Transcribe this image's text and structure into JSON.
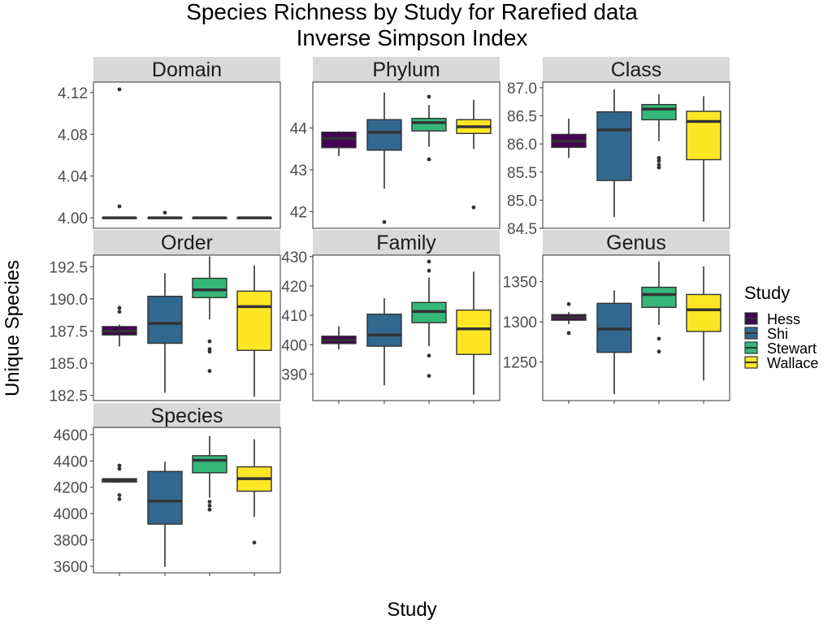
{
  "chart_data": {
    "type": "boxplot",
    "title_line1": "Species Richness by Study for Rarefied data",
    "title_line2": "Inverse Simpson Index",
    "xlabel": "Study",
    "ylabel": "Unique Species",
    "legend": {
      "title": "Study",
      "position": "right",
      "items": [
        {
          "name": "Hess",
          "color": "#440154"
        },
        {
          "name": "Shi",
          "color": "#31688E"
        },
        {
          "name": "Stewart",
          "color": "#35B779"
        },
        {
          "name": "Wallace",
          "color": "#FDE725"
        }
      ]
    },
    "panels": [
      {
        "name": "Domain",
        "ylim": [
          3.99,
          4.13
        ],
        "ticks": [
          4.0,
          4.04,
          4.08,
          4.12
        ],
        "tick_labels": [
          "4.00",
          "4.04",
          "4.08",
          "4.12"
        ],
        "boxes": [
          {
            "study": "Hess",
            "q1": 4.0,
            "median": 4.0,
            "q3": 4.0,
            "lower": 4.0,
            "upper": 4.0,
            "outliers": [
              4.011,
              4.123
            ]
          },
          {
            "study": "Shi",
            "q1": 4.0,
            "median": 4.0,
            "q3": 4.0,
            "lower": 4.0,
            "upper": 4.0,
            "outliers": [
              4.005
            ]
          },
          {
            "study": "Stewart",
            "q1": 4.0,
            "median": 4.0,
            "q3": 4.0,
            "lower": 4.0,
            "upper": 4.0,
            "outliers": []
          },
          {
            "study": "Wallace",
            "q1": 4.0,
            "median": 4.0,
            "q3": 4.0,
            "lower": 4.0,
            "upper": 4.0,
            "outliers": []
          }
        ]
      },
      {
        "name": "Phylum",
        "ylim": [
          41.6,
          45.1
        ],
        "ticks": [
          42,
          43,
          44
        ],
        "tick_labels": [
          "42",
          "43",
          "44"
        ],
        "boxes": [
          {
            "study": "Hess",
            "q1": 43.53,
            "median": 43.75,
            "q3": 43.9,
            "lower": 43.33,
            "upper": 43.92,
            "outliers": []
          },
          {
            "study": "Shi",
            "q1": 43.47,
            "median": 43.9,
            "q3": 44.2,
            "lower": 42.55,
            "upper": 44.85,
            "outliers": [
              41.75
            ]
          },
          {
            "study": "Stewart",
            "q1": 43.93,
            "median": 44.13,
            "q3": 44.23,
            "lower": 43.55,
            "upper": 44.55,
            "outliers": [
              43.25,
              44.75
            ]
          },
          {
            "study": "Wallace",
            "q1": 43.87,
            "median": 44.03,
            "q3": 44.2,
            "lower": 43.5,
            "upper": 44.68,
            "outliers": [
              42.1
            ]
          }
        ]
      },
      {
        "name": "Class",
        "ylim": [
          84.5,
          87.1
        ],
        "ticks": [
          84.5,
          85.0,
          85.5,
          86.0,
          86.5,
          87.0
        ],
        "tick_labels": [
          "84.5",
          "85.0",
          "85.5",
          "86.0",
          "86.5",
          "87.0"
        ],
        "boxes": [
          {
            "study": "Hess",
            "q1": 85.94,
            "median": 86.05,
            "q3": 86.17,
            "lower": 85.75,
            "upper": 86.45,
            "outliers": []
          },
          {
            "study": "Shi",
            "q1": 85.35,
            "median": 86.25,
            "q3": 86.57,
            "lower": 84.7,
            "upper": 86.97,
            "outliers": []
          },
          {
            "study": "Stewart",
            "q1": 86.43,
            "median": 86.62,
            "q3": 86.7,
            "lower": 86.05,
            "upper": 86.88,
            "outliers": [
              85.58,
              85.63,
              85.7,
              85.75
            ]
          },
          {
            "study": "Wallace",
            "q1": 85.72,
            "median": 86.4,
            "q3": 86.58,
            "lower": 84.62,
            "upper": 86.85,
            "outliers": []
          }
        ]
      },
      {
        "name": "Order",
        "ylim": [
          182.1,
          193.4
        ],
        "ticks": [
          182.5,
          185.0,
          187.5,
          190.0,
          192.5
        ],
        "tick_labels": [
          "182.5",
          "185.0",
          "187.5",
          "190.0",
          "192.5"
        ],
        "boxes": [
          {
            "study": "Hess",
            "q1": 187.2,
            "median": 187.5,
            "q3": 187.85,
            "lower": 186.3,
            "upper": 188.0,
            "outliers": [
              189.0,
              189.3
            ]
          },
          {
            "study": "Shi",
            "q1": 186.55,
            "median": 188.1,
            "q3": 190.2,
            "lower": 182.7,
            "upper": 192.0,
            "outliers": []
          },
          {
            "study": "Stewart",
            "q1": 190.1,
            "median": 190.7,
            "q3": 191.6,
            "lower": 188.4,
            "upper": 193.3,
            "outliers": [
              184.4,
              185.9,
              186.1,
              186.7
            ]
          },
          {
            "study": "Wallace",
            "q1": 186.0,
            "median": 189.4,
            "q3": 190.6,
            "lower": 182.4,
            "upper": 192.6,
            "outliers": []
          }
        ]
      },
      {
        "name": "Family",
        "ylim": [
          381,
          430.5
        ],
        "ticks": [
          390,
          400,
          410,
          420,
          430
        ],
        "tick_labels": [
          "390",
          "400",
          "410",
          "420",
          "430"
        ],
        "boxes": [
          {
            "study": "Hess",
            "q1": 400.4,
            "median": 401.6,
            "q3": 402.9,
            "lower": 398.4,
            "upper": 406.2,
            "outliers": []
          },
          {
            "study": "Shi",
            "q1": 399.5,
            "median": 403.3,
            "q3": 410.4,
            "lower": 386.2,
            "upper": 415.8,
            "outliers": []
          },
          {
            "study": "Stewart",
            "q1": 407.5,
            "median": 411.3,
            "q3": 414.4,
            "lower": 399.5,
            "upper": 422.9,
            "outliers": [
              389.4,
              396.3,
              425.2,
              428.3
            ]
          },
          {
            "study": "Wallace",
            "q1": 396.7,
            "median": 405.4,
            "q3": 411.8,
            "lower": 383,
            "upper": 424.9,
            "outliers": []
          }
        ]
      },
      {
        "name": "Genus",
        "ylim": [
          1202,
          1383
        ],
        "ticks": [
          1250,
          1300,
          1350
        ],
        "tick_labels": [
          "1250",
          "1300",
          "1350"
        ],
        "boxes": [
          {
            "study": "Hess",
            "q1": 1302,
            "median": 1305.5,
            "q3": 1309,
            "lower": 1297,
            "upper": 1312,
            "outliers": [
              1286,
              1322
            ]
          },
          {
            "study": "Shi",
            "q1": 1262,
            "median": 1291,
            "q3": 1323,
            "lower": 1210,
            "upper": 1339,
            "outliers": []
          },
          {
            "study": "Stewart",
            "q1": 1318,
            "median": 1334,
            "q3": 1343,
            "lower": 1296,
            "upper": 1375,
            "outliers": [
              1263,
              1279
            ]
          },
          {
            "study": "Wallace",
            "q1": 1288,
            "median": 1315,
            "q3": 1334,
            "lower": 1227,
            "upper": 1369,
            "outliers": []
          }
        ]
      },
      {
        "name": "Species",
        "ylim": [
          3550,
          4655
        ],
        "ticks": [
          3600,
          3800,
          4000,
          4200,
          4400,
          4600
        ],
        "tick_labels": [
          "3600",
          "3800",
          "4000",
          "4200",
          "4400",
          "4600"
        ],
        "boxes": [
          {
            "study": "Hess",
            "q1": 4240,
            "median": 4255,
            "q3": 4265,
            "lower": 4235,
            "upper": 4270,
            "outliers": [
              4110,
              4140,
              4340,
              4365
            ]
          },
          {
            "study": "Shi",
            "q1": 3920,
            "median": 4095,
            "q3": 4320,
            "lower": 3595,
            "upper": 4395,
            "outliers": []
          },
          {
            "study": "Stewart",
            "q1": 4310,
            "median": 4405,
            "q3": 4440,
            "lower": 4120,
            "upper": 4590,
            "outliers": [
              4030,
              4060,
              4090
            ]
          },
          {
            "study": "Wallace",
            "q1": 4170,
            "median": 4265,
            "q3": 4355,
            "lower": 3975,
            "upper": 4565,
            "outliers": [
              3780
            ]
          }
        ]
      }
    ]
  }
}
